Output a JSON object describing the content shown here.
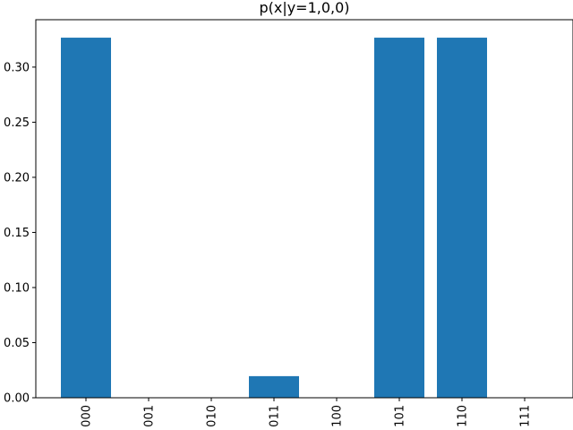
{
  "chart_data": {
    "type": "bar",
    "title": "p(x|y=1,0,0)",
    "xlabel": "",
    "ylabel": "",
    "categories": [
      "000",
      "001",
      "010",
      "011",
      "100",
      "101",
      "110",
      "111"
    ],
    "values": [
      0.3267,
      0.0,
      0.0,
      0.0196,
      0.0,
      0.3267,
      0.3267,
      0.0
    ],
    "ylim": [
      0,
      0.343
    ],
    "yticks": [
      0.0,
      0.05,
      0.1,
      0.15,
      0.2,
      0.25,
      0.3
    ],
    "ytick_labels": [
      "0.00",
      "0.05",
      "0.10",
      "0.15",
      "0.20",
      "0.25",
      "0.30"
    ],
    "bar_color": "#1f77b4",
    "grid": false,
    "legend": "none"
  }
}
